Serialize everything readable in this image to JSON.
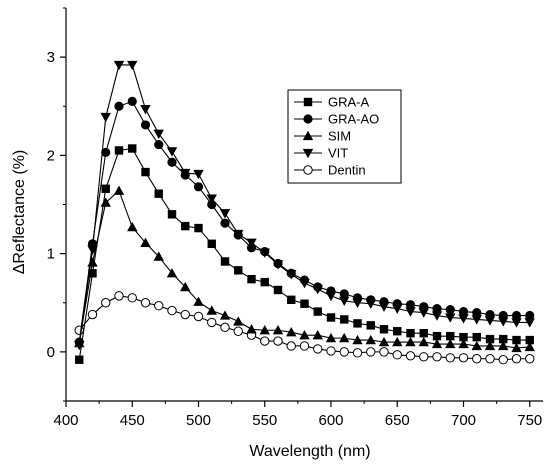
{
  "chart_data": {
    "type": "line",
    "xlabel": "Wavelength (nm)",
    "ylabel": "ΔReflectance (%)",
    "xlim": [
      400,
      760
    ],
    "ylim": [
      -0.5,
      3.5
    ],
    "xticks": [
      400,
      450,
      500,
      550,
      600,
      650,
      700,
      750
    ],
    "yticks": [
      0,
      1,
      2,
      3
    ],
    "grid": false,
    "legend": "upper-right",
    "x": [
      410,
      420,
      430,
      440,
      450,
      460,
      470,
      480,
      490,
      500,
      510,
      520,
      530,
      540,
      550,
      560,
      570,
      580,
      590,
      600,
      610,
      620,
      630,
      640,
      650,
      660,
      670,
      680,
      690,
      700,
      710,
      720,
      730,
      740,
      750
    ],
    "series": [
      {
        "name": "GRA-A",
        "marker": "square",
        "values": [
          -0.08,
          0.8,
          1.66,
          2.05,
          2.07,
          1.83,
          1.61,
          1.4,
          1.28,
          1.26,
          1.1,
          0.92,
          0.83,
          0.74,
          0.71,
          0.63,
          0.53,
          0.49,
          0.41,
          0.35,
          0.33,
          0.29,
          0.27,
          0.23,
          0.21,
          0.19,
          0.19,
          0.16,
          0.16,
          0.15,
          0.15,
          0.13,
          0.13,
          0.12,
          0.12
        ]
      },
      {
        "name": "GRA-AO",
        "marker": "circle",
        "values": [
          0.1,
          1.1,
          2.03,
          2.5,
          2.55,
          2.31,
          2.11,
          1.93,
          1.8,
          1.68,
          1.5,
          1.31,
          1.19,
          1.06,
          1.02,
          0.9,
          0.8,
          0.73,
          0.66,
          0.62,
          0.59,
          0.55,
          0.53,
          0.51,
          0.49,
          0.48,
          0.46,
          0.44,
          0.43,
          0.41,
          0.4,
          0.38,
          0.37,
          0.37,
          0.37
        ]
      },
      {
        "name": "SIM",
        "marker": "triangle-up",
        "values": [
          0.09,
          0.91,
          1.52,
          1.64,
          1.27,
          1.11,
          0.97,
          0.8,
          0.66,
          0.51,
          0.42,
          0.37,
          0.31,
          0.23,
          0.22,
          0.22,
          0.2,
          0.17,
          0.17,
          0.14,
          0.14,
          0.12,
          0.12,
          0.1,
          0.1,
          0.1,
          0.1,
          0.08,
          0.08,
          0.08,
          0.06,
          0.06,
          0.06,
          0.04,
          0.05
        ]
      },
      {
        "name": "VIT",
        "marker": "triangle-down",
        "values": [
          0.07,
          1.04,
          2.39,
          2.92,
          2.92,
          2.47,
          2.22,
          2.04,
          1.82,
          1.81,
          1.56,
          1.41,
          1.2,
          1.11,
          1.01,
          0.89,
          0.79,
          0.7,
          0.64,
          0.57,
          0.52,
          0.5,
          0.49,
          0.46,
          0.44,
          0.41,
          0.4,
          0.37,
          0.35,
          0.34,
          0.33,
          0.32,
          0.31,
          0.3,
          0.3
        ]
      },
      {
        "name": "Dentin",
        "marker": "circle-open",
        "values": [
          0.22,
          0.38,
          0.5,
          0.57,
          0.55,
          0.5,
          0.47,
          0.42,
          0.38,
          0.36,
          0.3,
          0.25,
          0.21,
          0.17,
          0.11,
          0.11,
          0.06,
          0.06,
          0.03,
          0.01,
          0.0,
          -0.01,
          0.0,
          0.0,
          -0.03,
          -0.04,
          -0.05,
          -0.05,
          -0.06,
          -0.06,
          -0.07,
          -0.07,
          -0.08,
          -0.07,
          -0.07
        ]
      }
    ]
  }
}
